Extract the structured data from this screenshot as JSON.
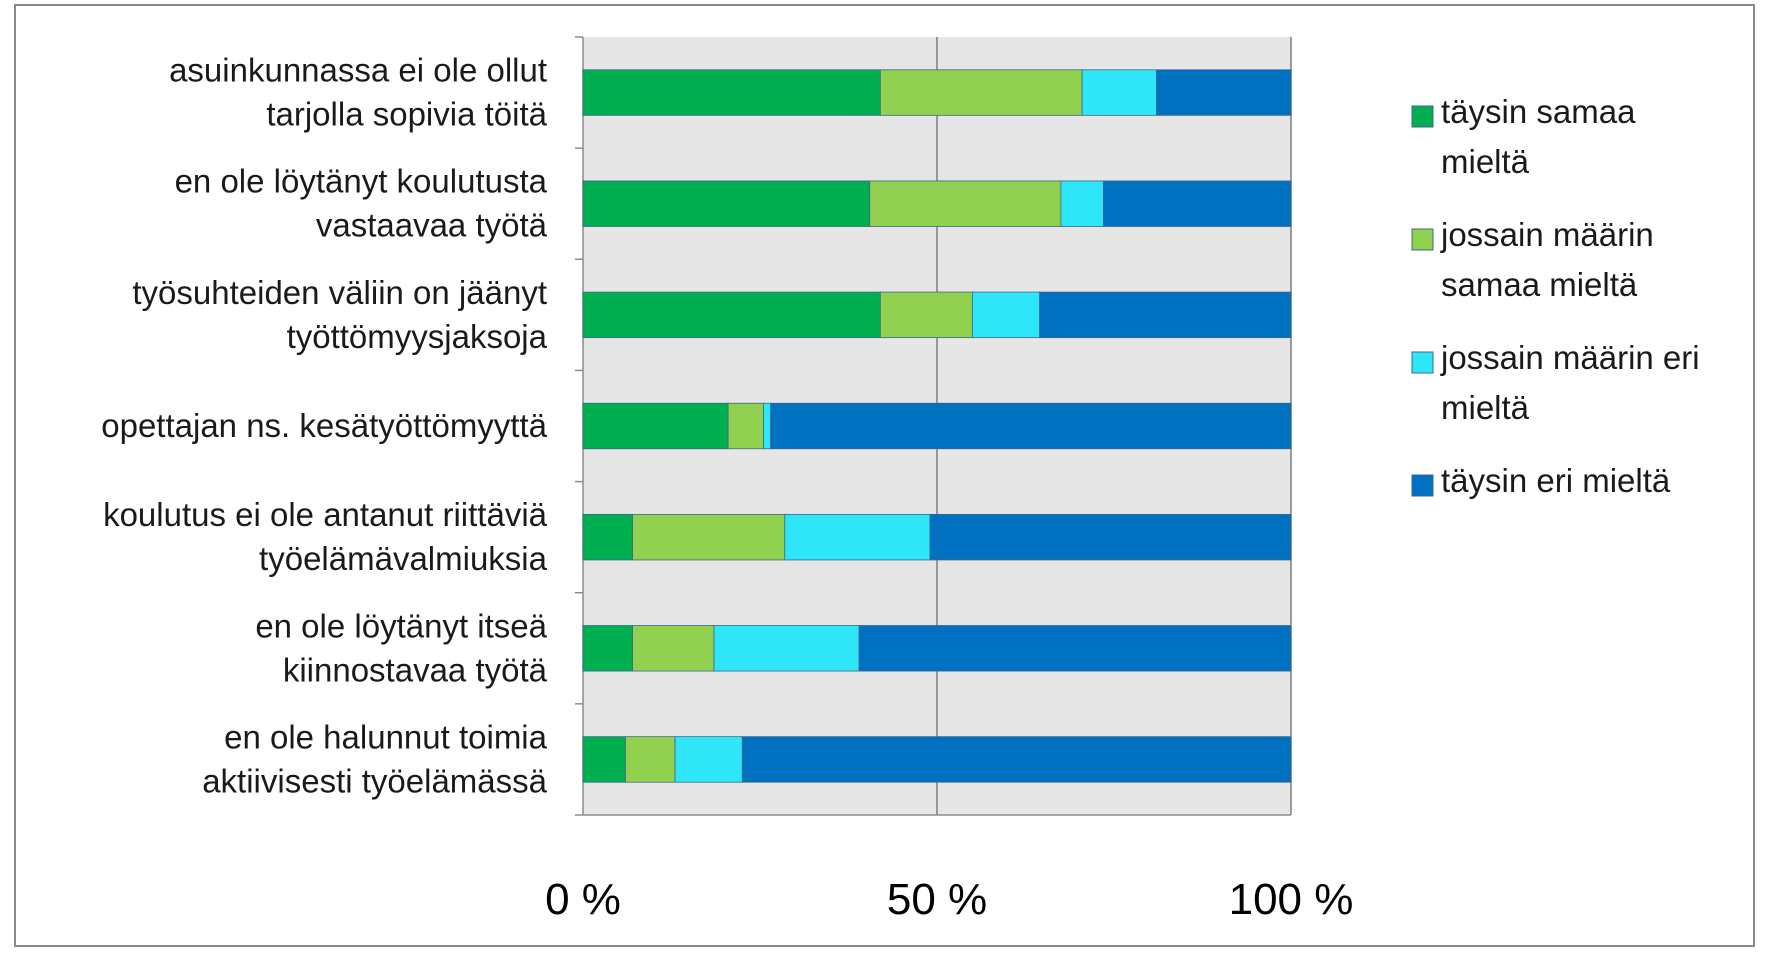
{
  "chart_data": {
    "type": "bar",
    "orientation": "horizontal",
    "stacked": "percent",
    "categories": [
      [
        "asuinkunnassa ei ole ollut",
        "tarjolla sopivia töitä"
      ],
      [
        "en ole löytänyt koulutusta",
        "vastaavaa työtä"
      ],
      [
        "työsuhteiden väliin on jäänyt",
        "työttömyysjaksoja"
      ],
      [
        "opettajan ns. kesätyöttömyyttä"
      ],
      [
        "koulutus ei ole antanut riittäviä",
        "työelämävalmiuksia"
      ],
      [
        "en ole löytänyt itseä",
        "kiinnostavaa työtä"
      ],
      [
        "en ole halunnut toimia",
        "aktiivisesti työelämässä"
      ]
    ],
    "series": [
      {
        "name": [
          "täysin samaa",
          "mieltä"
        ],
        "color": "#00b050",
        "values": [
          42,
          40.5,
          42,
          20.5,
          7,
          7,
          6
        ]
      },
      {
        "name": [
          "jossain määrin",
          "samaa mieltä"
        ],
        "color": "#92d050",
        "values": [
          28.5,
          27,
          13,
          5,
          21.5,
          11.5,
          7
        ]
      },
      {
        "name": [
          "jossain määrin eri",
          "mieltä"
        ],
        "color": "#2ee6f8",
        "values": [
          10.5,
          6,
          9.5,
          1,
          20.5,
          20.5,
          9.5
        ]
      },
      {
        "name": [
          "täysin eri mieltä"
        ],
        "color": "#0070c0",
        "values": [
          19,
          26.5,
          35.5,
          73.5,
          51,
          61,
          77.5
        ]
      }
    ],
    "x_ticks": [
      "0 %",
      "50 %",
      "100 %"
    ],
    "xlim": [
      0,
      100
    ],
    "grid": true,
    "legend": "right"
  }
}
